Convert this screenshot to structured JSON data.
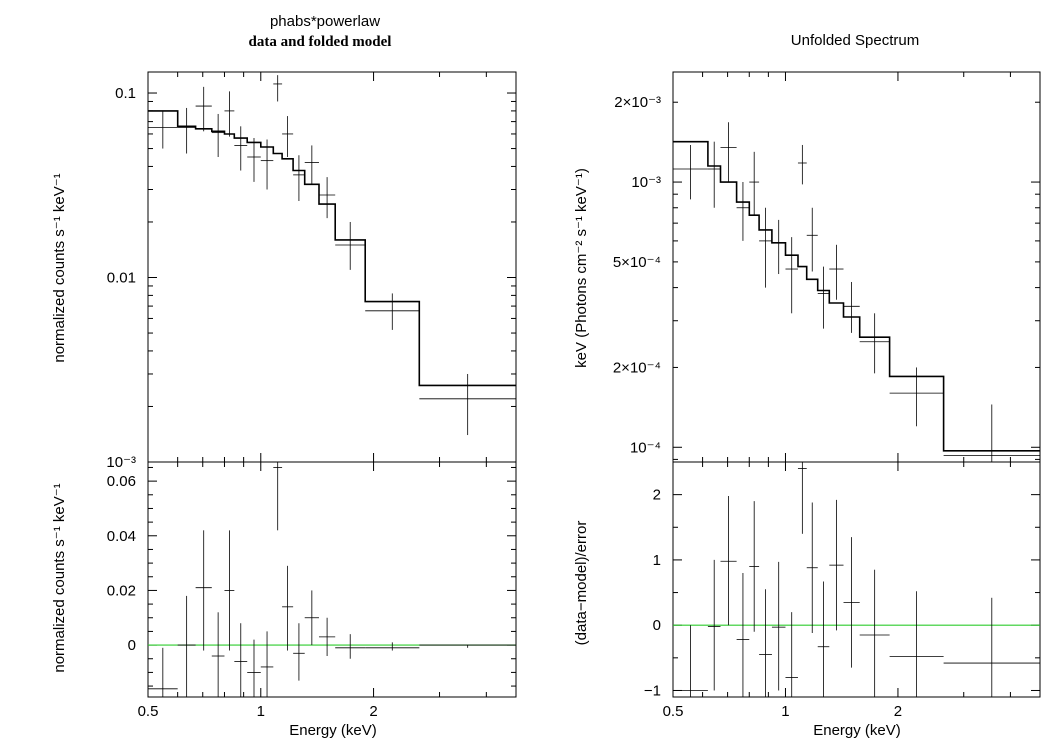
{
  "chart_data": [
    {
      "type": "line",
      "panel": "left-top",
      "title": "phabs*powerlaw",
      "subtitle": "data and folded model",
      "xlabel": "",
      "ylabel": "normalized counts s⁻¹ keV⁻¹",
      "xscale": "log",
      "yscale": "log",
      "xlim": [
        0.5,
        4.8
      ],
      "ylim": [
        0.001,
        0.13
      ],
      "yticks": [
        {
          "v": 0.1,
          "label": "0.1"
        },
        {
          "v": 0.01,
          "label": "0.01"
        },
        {
          "v": 0.001,
          "label": "10⁻³"
        }
      ],
      "data": [
        {
          "xlo": 0.5,
          "xhi": 0.6,
          "y": 0.065,
          "ylo": 0.05,
          "yhi": 0.08
        },
        {
          "xlo": 0.6,
          "xhi": 0.67,
          "y": 0.065,
          "ylo": 0.047,
          "yhi": 0.083
        },
        {
          "xlo": 0.67,
          "xhi": 0.74,
          "y": 0.085,
          "ylo": 0.062,
          "yhi": 0.108
        },
        {
          "xlo": 0.74,
          "xhi": 0.8,
          "y": 0.061,
          "ylo": 0.045,
          "yhi": 0.077
        },
        {
          "xlo": 0.8,
          "xhi": 0.85,
          "y": 0.08,
          "ylo": 0.058,
          "yhi": 0.102
        },
        {
          "xlo": 0.85,
          "xhi": 0.92,
          "y": 0.052,
          "ylo": 0.038,
          "yhi": 0.066
        },
        {
          "xlo": 0.92,
          "xhi": 1.0,
          "y": 0.045,
          "ylo": 0.033,
          "yhi": 0.057
        },
        {
          "xlo": 1.0,
          "xhi": 1.08,
          "y": 0.043,
          "ylo": 0.03,
          "yhi": 0.056
        },
        {
          "xlo": 1.08,
          "xhi": 1.14,
          "y": 0.112,
          "ylo": 0.09,
          "yhi": 0.125
        },
        {
          "xlo": 1.14,
          "xhi": 1.22,
          "y": 0.06,
          "ylo": 0.045,
          "yhi": 0.075
        },
        {
          "xlo": 1.22,
          "xhi": 1.31,
          "y": 0.036,
          "ylo": 0.026,
          "yhi": 0.046
        },
        {
          "xlo": 1.31,
          "xhi": 1.43,
          "y": 0.042,
          "ylo": 0.032,
          "yhi": 0.052
        },
        {
          "xlo": 1.43,
          "xhi": 1.58,
          "y": 0.028,
          "ylo": 0.021,
          "yhi": 0.035
        },
        {
          "xlo": 1.58,
          "xhi": 1.9,
          "y": 0.015,
          "ylo": 0.011,
          "yhi": 0.02
        },
        {
          "xlo": 1.9,
          "xhi": 2.65,
          "y": 0.0066,
          "ylo": 0.0052,
          "yhi": 0.0082
        },
        {
          "xlo": 2.65,
          "xhi": 4.8,
          "y": 0.0022,
          "ylo": 0.0014,
          "yhi": 0.003
        }
      ],
      "model": [
        {
          "xlo": 0.5,
          "xhi": 0.6,
          "y": 0.08
        },
        {
          "xlo": 0.6,
          "xhi": 0.67,
          "y": 0.066
        },
        {
          "xlo": 0.67,
          "xhi": 0.74,
          "y": 0.064
        },
        {
          "xlo": 0.74,
          "xhi": 0.8,
          "y": 0.062
        },
        {
          "xlo": 0.8,
          "xhi": 0.85,
          "y": 0.06
        },
        {
          "xlo": 0.85,
          "xhi": 0.92,
          "y": 0.057
        },
        {
          "xlo": 0.92,
          "xhi": 1.0,
          "y": 0.054
        },
        {
          "xlo": 1.0,
          "xhi": 1.08,
          "y": 0.051
        },
        {
          "xlo": 1.08,
          "xhi": 1.14,
          "y": 0.047
        },
        {
          "xlo": 1.14,
          "xhi": 1.22,
          "y": 0.044
        },
        {
          "xlo": 1.22,
          "xhi": 1.31,
          "y": 0.038
        },
        {
          "xlo": 1.31,
          "xhi": 1.43,
          "y": 0.032
        },
        {
          "xlo": 1.43,
          "xhi": 1.58,
          "y": 0.025
        },
        {
          "xlo": 1.58,
          "xhi": 1.9,
          "y": 0.016
        },
        {
          "xlo": 1.9,
          "xhi": 2.65,
          "y": 0.0074
        },
        {
          "xlo": 2.65,
          "xhi": 4.8,
          "y": 0.0026
        }
      ]
    },
    {
      "type": "line",
      "panel": "left-bottom",
      "xlabel": "Energy (keV)",
      "ylabel": "normalized counts s⁻¹ keV⁻¹",
      "xscale": "log",
      "yscale": "linear",
      "xlim": [
        0.5,
        4.8
      ],
      "ylim": [
        -0.019,
        0.067
      ],
      "xticks": [
        {
          "v": 0.5,
          "label": "0.5"
        },
        {
          "v": 1,
          "label": "1"
        },
        {
          "v": 2,
          "label": "2"
        }
      ],
      "yticks": [
        {
          "v": 0,
          "label": "0"
        },
        {
          "v": 0.02,
          "label": "0.02"
        },
        {
          "v": 0.04,
          "label": "0.04"
        },
        {
          "v": 0.06,
          "label": "0.06"
        }
      ],
      "reference_line": 0,
      "data": [
        {
          "xlo": 0.5,
          "xhi": 0.6,
          "y": -0.016,
          "ylo": -0.019,
          "yhi": -0.001
        },
        {
          "xlo": 0.6,
          "xhi": 0.67,
          "y": 0.0,
          "ylo": -0.019,
          "yhi": 0.018
        },
        {
          "xlo": 0.67,
          "xhi": 0.74,
          "y": 0.021,
          "ylo": -0.002,
          "yhi": 0.042
        },
        {
          "xlo": 0.74,
          "xhi": 0.8,
          "y": -0.004,
          "ylo": -0.019,
          "yhi": 0.012
        },
        {
          "xlo": 0.8,
          "xhi": 0.85,
          "y": 0.02,
          "ylo": -0.002,
          "yhi": 0.042
        },
        {
          "xlo": 0.85,
          "xhi": 0.92,
          "y": -0.006,
          "ylo": -0.019,
          "yhi": 0.008
        },
        {
          "xlo": 0.92,
          "xhi": 1.0,
          "y": -0.01,
          "ylo": -0.019,
          "yhi": 0.002
        },
        {
          "xlo": 1.0,
          "xhi": 1.08,
          "y": -0.008,
          "ylo": -0.019,
          "yhi": 0.005
        },
        {
          "xlo": 1.08,
          "xhi": 1.14,
          "y": 0.065,
          "ylo": 0.042,
          "yhi": 0.067
        },
        {
          "xlo": 1.14,
          "xhi": 1.22,
          "y": 0.014,
          "ylo": -0.002,
          "yhi": 0.029
        },
        {
          "xlo": 1.22,
          "xhi": 1.31,
          "y": -0.003,
          "ylo": -0.013,
          "yhi": 0.008
        },
        {
          "xlo": 1.31,
          "xhi": 1.43,
          "y": 0.01,
          "ylo": 0.0,
          "yhi": 0.02
        },
        {
          "xlo": 1.43,
          "xhi": 1.58,
          "y": 0.003,
          "ylo": -0.004,
          "yhi": 0.01
        },
        {
          "xlo": 1.58,
          "xhi": 1.9,
          "y": -0.001,
          "ylo": -0.005,
          "yhi": 0.004
        },
        {
          "xlo": 1.9,
          "xhi": 2.65,
          "y": -0.001,
          "ylo": -0.002,
          "yhi": 0.001
        },
        {
          "xlo": 2.65,
          "xhi": 4.8,
          "y": 0.0,
          "ylo": -0.001,
          "yhi": 0.0
        }
      ]
    },
    {
      "type": "line",
      "panel": "right-top",
      "title": "Unfolded Spectrum",
      "xlabel": "",
      "ylabel": "keV (Photons cm⁻² s⁻¹ keV⁻¹)",
      "xscale": "log",
      "yscale": "log",
      "xlim": [
        0.5,
        4.8
      ],
      "ylim": [
        8.8e-05,
        0.0026
      ],
      "yticks": [
        {
          "v": 0.002,
          "label": "2×10⁻³"
        },
        {
          "v": 0.001,
          "label": "10⁻³"
        },
        {
          "v": 0.0005,
          "label": "5×10⁻⁴"
        },
        {
          "v": 0.0002,
          "label": "2×10⁻⁴"
        },
        {
          "v": 0.0001,
          "label": "10⁻⁴"
        }
      ],
      "data": [
        {
          "xlo": 0.5,
          "xhi": 0.62,
          "y": 0.00112,
          "ylo": 0.00086,
          "yhi": 0.00138
        },
        {
          "xlo": 0.62,
          "xhi": 0.67,
          "y": 0.00112,
          "ylo": 0.0008,
          "yhi": 0.00142
        },
        {
          "xlo": 0.67,
          "xhi": 0.74,
          "y": 0.00135,
          "ylo": 0.001,
          "yhi": 0.00168
        },
        {
          "xlo": 0.74,
          "xhi": 0.8,
          "y": 0.0008,
          "ylo": 0.0006,
          "yhi": 0.001
        },
        {
          "xlo": 0.8,
          "xhi": 0.85,
          "y": 0.001,
          "ylo": 0.00075,
          "yhi": 0.0013
        },
        {
          "xlo": 0.85,
          "xhi": 0.92,
          "y": 0.0006,
          "ylo": 0.0004,
          "yhi": 0.0008
        },
        {
          "xlo": 0.92,
          "xhi": 1.0,
          "y": 0.00059,
          "ylo": 0.00045,
          "yhi": 0.00072
        },
        {
          "xlo": 1.0,
          "xhi": 1.08,
          "y": 0.00047,
          "ylo": 0.00032,
          "yhi": 0.00062
        },
        {
          "xlo": 1.08,
          "xhi": 1.14,
          "y": 0.00118,
          "ylo": 0.00098,
          "yhi": 0.00138
        },
        {
          "xlo": 1.14,
          "xhi": 1.22,
          "y": 0.00063,
          "ylo": 0.00046,
          "yhi": 0.0008
        },
        {
          "xlo": 1.22,
          "xhi": 1.31,
          "y": 0.00038,
          "ylo": 0.00028,
          "yhi": 0.00048
        },
        {
          "xlo": 1.31,
          "xhi": 1.43,
          "y": 0.00047,
          "ylo": 0.00036,
          "yhi": 0.00058
        },
        {
          "xlo": 1.43,
          "xhi": 1.58,
          "y": 0.00034,
          "ylo": 0.00027,
          "yhi": 0.00042
        },
        {
          "xlo": 1.58,
          "xhi": 1.9,
          "y": 0.00025,
          "ylo": 0.00019,
          "yhi": 0.00032
        },
        {
          "xlo": 1.9,
          "xhi": 2.65,
          "y": 0.00016,
          "ylo": 0.00012,
          "yhi": 0.0002
        },
        {
          "xlo": 2.65,
          "xhi": 4.8,
          "y": 9.3e-05,
          "ylo": 8.8e-05,
          "yhi": 0.000145
        }
      ],
      "model": [
        {
          "xlo": 0.5,
          "xhi": 0.62,
          "y": 0.00142
        },
        {
          "xlo": 0.62,
          "xhi": 0.67,
          "y": 0.00115
        },
        {
          "xlo": 0.67,
          "xhi": 0.74,
          "y": 0.001
        },
        {
          "xlo": 0.74,
          "xhi": 0.8,
          "y": 0.00084
        },
        {
          "xlo": 0.8,
          "xhi": 0.85,
          "y": 0.00075
        },
        {
          "xlo": 0.85,
          "xhi": 0.92,
          "y": 0.00066
        },
        {
          "xlo": 0.92,
          "xhi": 1.0,
          "y": 0.00059
        },
        {
          "xlo": 1.0,
          "xhi": 1.08,
          "y": 0.00053
        },
        {
          "xlo": 1.08,
          "xhi": 1.14,
          "y": 0.00048
        },
        {
          "xlo": 1.14,
          "xhi": 1.22,
          "y": 0.00043
        },
        {
          "xlo": 1.22,
          "xhi": 1.31,
          "y": 0.00039
        },
        {
          "xlo": 1.31,
          "xhi": 1.43,
          "y": 0.00035
        },
        {
          "xlo": 1.43,
          "xhi": 1.58,
          "y": 0.00031
        },
        {
          "xlo": 1.58,
          "xhi": 1.9,
          "y": 0.00026
        },
        {
          "xlo": 1.9,
          "xhi": 2.65,
          "y": 0.000185
        },
        {
          "xlo": 2.65,
          "xhi": 4.8,
          "y": 9.7e-05
        }
      ]
    },
    {
      "type": "line",
      "panel": "right-bottom",
      "xlabel": "Energy (keV)",
      "ylabel": "(data−model)/error",
      "xscale": "log",
      "yscale": "linear",
      "xlim": [
        0.5,
        4.8
      ],
      "ylim": [
        -1.1,
        2.5
      ],
      "xticks": [
        {
          "v": 0.5,
          "label": "0.5"
        },
        {
          "v": 1,
          "label": "1"
        },
        {
          "v": 2,
          "label": "2"
        }
      ],
      "yticks": [
        {
          "v": -1,
          "label": "−1"
        },
        {
          "v": 0,
          "label": "0"
        },
        {
          "v": 1,
          "label": "1"
        },
        {
          "v": 2,
          "label": "2"
        }
      ],
      "reference_line": 0,
      "data": [
        {
          "xlo": 0.5,
          "xhi": 0.62,
          "y": -1.0,
          "ylo": -1.1,
          "yhi": 0.0
        },
        {
          "xlo": 0.62,
          "xhi": 0.67,
          "y": -0.02,
          "ylo": -1.0,
          "yhi": 1.0
        },
        {
          "xlo": 0.67,
          "xhi": 0.74,
          "y": 0.98,
          "ylo": 0.0,
          "yhi": 1.98
        },
        {
          "xlo": 0.74,
          "xhi": 0.8,
          "y": -0.22,
          "ylo": -1.1,
          "yhi": 0.8
        },
        {
          "xlo": 0.8,
          "xhi": 0.85,
          "y": 0.9,
          "ylo": -0.1,
          "yhi": 1.9
        },
        {
          "xlo": 0.85,
          "xhi": 0.92,
          "y": -0.45,
          "ylo": -1.1,
          "yhi": 0.55
        },
        {
          "xlo": 0.92,
          "xhi": 1.0,
          "y": -0.03,
          "ylo": -1.0,
          "yhi": 0.97
        },
        {
          "xlo": 1.0,
          "xhi": 1.08,
          "y": -0.8,
          "ylo": -1.1,
          "yhi": 0.2
        },
        {
          "xlo": 1.08,
          "xhi": 1.14,
          "y": 2.4,
          "ylo": 1.4,
          "yhi": 2.5
        },
        {
          "xlo": 1.14,
          "xhi": 1.22,
          "y": 0.88,
          "ylo": -0.12,
          "yhi": 1.88
        },
        {
          "xlo": 1.22,
          "xhi": 1.31,
          "y": -0.33,
          "ylo": -1.1,
          "yhi": 0.67
        },
        {
          "xlo": 1.31,
          "xhi": 1.43,
          "y": 0.92,
          "ylo": -0.08,
          "yhi": 1.92
        },
        {
          "xlo": 1.43,
          "xhi": 1.58,
          "y": 0.35,
          "ylo": -0.65,
          "yhi": 1.35
        },
        {
          "xlo": 1.58,
          "xhi": 1.9,
          "y": -0.15,
          "ylo": -1.1,
          "yhi": 0.85
        },
        {
          "xlo": 1.9,
          "xhi": 2.65,
          "y": -0.48,
          "ylo": -1.1,
          "yhi": 0.52
        },
        {
          "xlo": 2.65,
          "xhi": 4.8,
          "y": -0.58,
          "ylo": -1.1,
          "yhi": 0.42
        }
      ]
    }
  ],
  "colors": {
    "reference_line": "#2ecc2e",
    "ink": "#000000"
  }
}
